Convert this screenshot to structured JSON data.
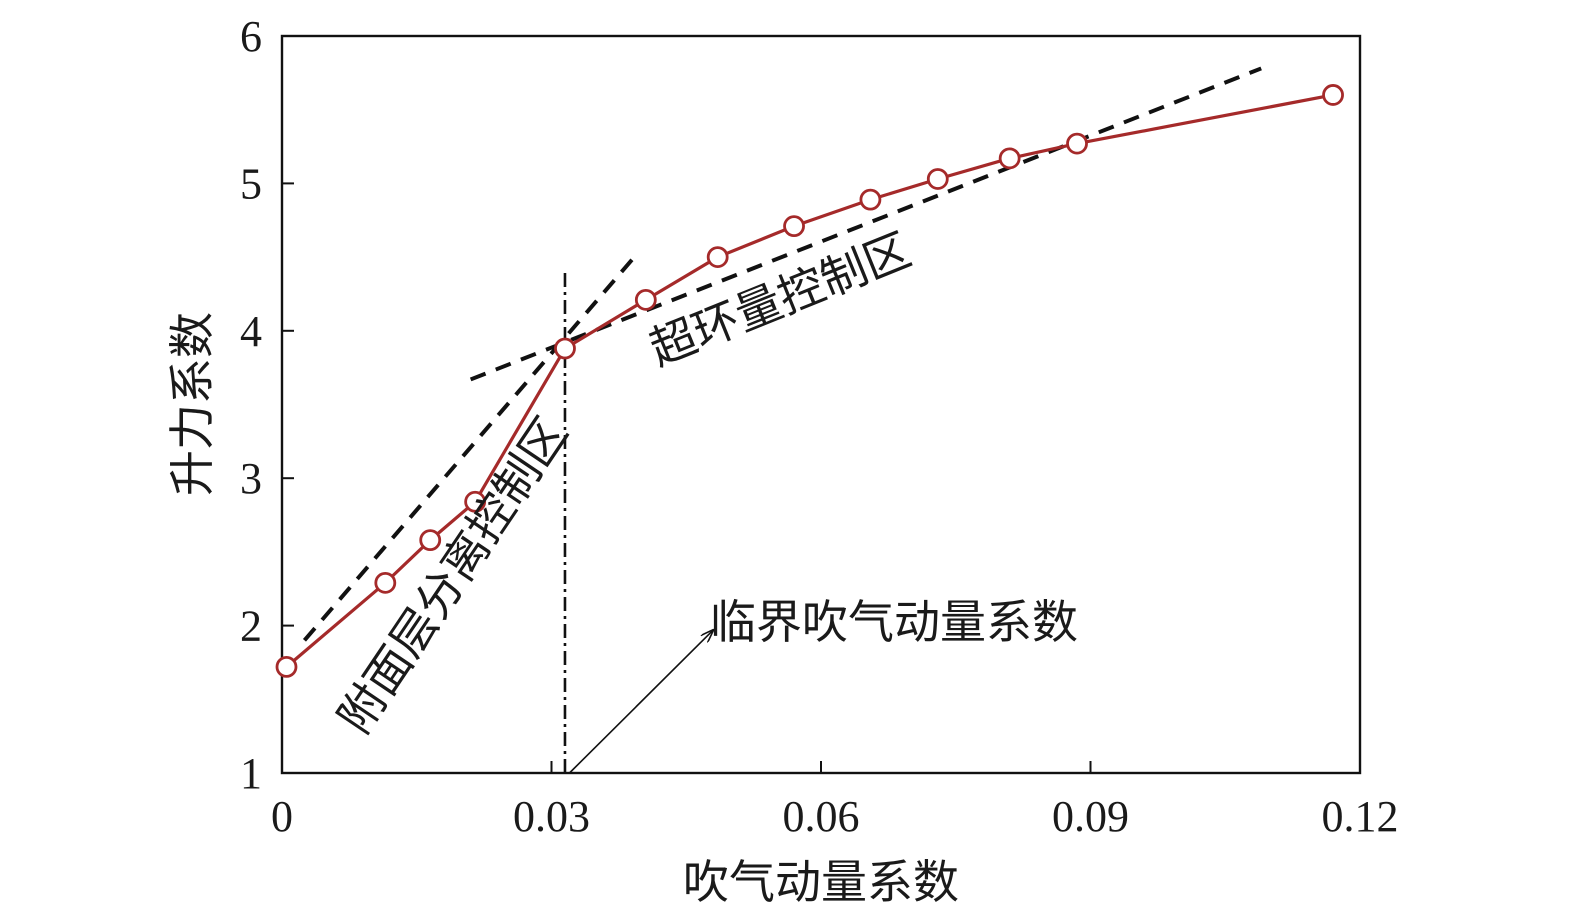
{
  "chart_data": {
    "type": "line",
    "title": "",
    "xlabel": "吹气动量系数",
    "ylabel": "升力系数",
    "xlim": [
      0,
      0.12
    ],
    "ylim": [
      1,
      6
    ],
    "xticks": [
      0,
      0.03,
      0.06,
      0.09,
      0.12
    ],
    "xtick_labels": [
      "0",
      "0.03",
      "0.06",
      "0.09",
      "0.12"
    ],
    "yticks": [
      1,
      2,
      3,
      4,
      5,
      6
    ],
    "ytick_labels": [
      "1",
      "2",
      "3",
      "4",
      "5",
      "6"
    ],
    "grid": false,
    "series": [
      {
        "name": "升力系数",
        "color": "#a52a2a",
        "marker": "open-circle",
        "x": [
          0.0005,
          0.0115,
          0.0165,
          0.0215,
          0.0315,
          0.0405,
          0.0485,
          0.057,
          0.0655,
          0.073,
          0.081,
          0.0885,
          0.117
        ],
        "y": [
          1.72,
          2.29,
          2.58,
          2.84,
          3.88,
          4.21,
          4.5,
          4.71,
          4.89,
          5.03,
          5.17,
          5.27,
          5.6
        ]
      }
    ],
    "reference_lines": [
      {
        "name": "附面层分离控制区趋势线",
        "style": "dashed",
        "color": "#111111",
        "x": [
          0.0025,
          0.0395
        ],
        "y": [
          1.9,
          4.52
        ]
      },
      {
        "name": "超环量控制区趋势线",
        "style": "dashed",
        "color": "#111111",
        "x": [
          0.021,
          0.109
        ],
        "y": [
          3.67,
          5.78
        ]
      },
      {
        "name": "临界吹气动量系数",
        "style": "dash-dot",
        "color": "#111111",
        "x": [
          0.0315,
          0.0315
        ],
        "y": [
          1,
          4.4
        ]
      }
    ],
    "annotations": {
      "separation_region": "附面层分离控制区",
      "circulation_region": "超环量控制区",
      "critical_label": "临界吹气动量系数",
      "critical_arrow_from": [
        0.032,
        1.0
      ],
      "critical_arrow_to": [
        0.048,
        1.97
      ]
    }
  }
}
